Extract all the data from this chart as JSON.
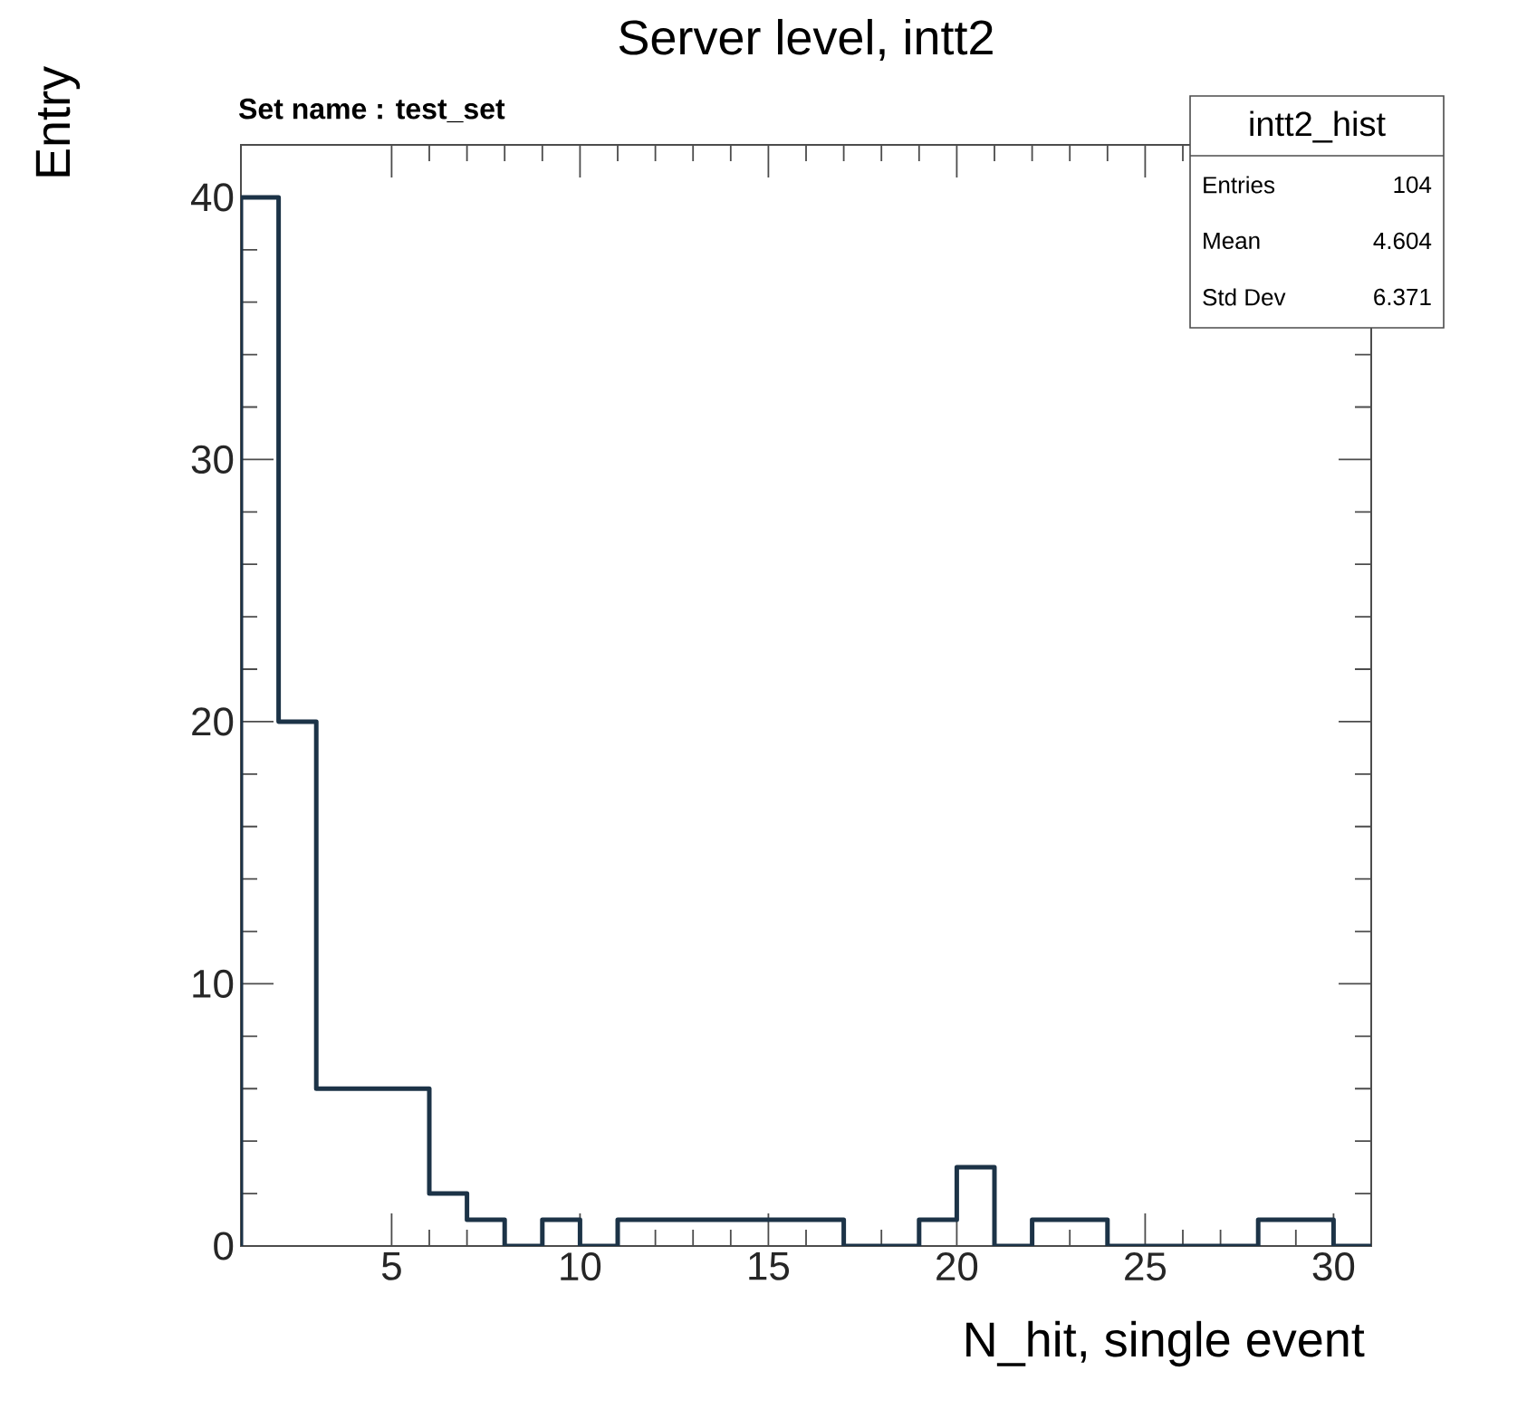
{
  "chart_data": {
    "type": "histogram",
    "title": "Server level, intt2",
    "xlabel": "N_hit, single event",
    "ylabel": "Entry",
    "bins": [
      1,
      2,
      3,
      4,
      5,
      6,
      7,
      8,
      9,
      10,
      11,
      12,
      13,
      14,
      15,
      16,
      17,
      18,
      19,
      20,
      21,
      22,
      23,
      24,
      25,
      26,
      27,
      28,
      29,
      30,
      31
    ],
    "values": [
      40,
      20,
      6,
      6,
      6,
      2,
      1,
      0,
      1,
      0,
      1,
      1,
      1,
      1,
      1,
      1,
      0,
      0,
      1,
      3,
      0,
      1,
      1,
      0,
      0,
      0,
      0,
      1,
      1,
      0
    ],
    "color": "#1c3347",
    "xlim": [
      1,
      31
    ],
    "ylim": [
      0,
      42
    ],
    "xticks": [
      5,
      10,
      15,
      20,
      25,
      30
    ],
    "yticks": [
      0,
      10,
      20,
      30,
      40
    ],
    "grid": false,
    "annotations": [
      "Set name : test_set",
      "intt2_hist",
      "Entries",
      "104",
      "Mean",
      "4.604",
      "Std Dev",
      "6.371"
    ]
  }
}
